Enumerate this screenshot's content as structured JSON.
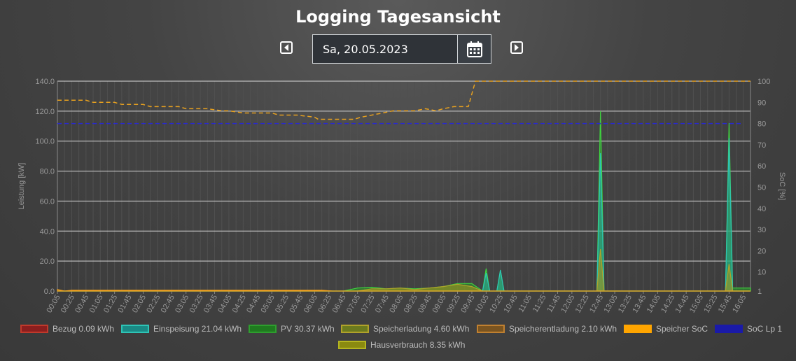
{
  "title": "Logging Tagesansicht",
  "date": "Sa, 20.05.2023",
  "icons": {
    "prev": "caret-left-icon",
    "next": "caret-right-icon",
    "calendar": "calendar-icon"
  },
  "colors": {
    "bezug": "#8b1e1e",
    "einspeisung": "#1a8a85",
    "pv": "#1f7a1f",
    "speicherladung": "#6b7a1e",
    "speicherentladung": "#7a5420",
    "speicher_soc": "#ffa500",
    "soc_lp1": "#1a1aa8",
    "hausverbrauch": "#8a8a10"
  },
  "legend": [
    {
      "label": "Bezug 0.09 kWh",
      "fill": "#8b1e1e",
      "border": "#c0392b"
    },
    {
      "label": "Einspeisung 21.04 kWh",
      "fill": "#1a8a85",
      "border": "#2ec4b6"
    },
    {
      "label": "PV 30.37 kWh",
      "fill": "#1f7a1f",
      "border": "#2e9e2e"
    },
    {
      "label": "Speicherladung 4.60 kWh",
      "fill": "#6b7a1e",
      "border": "#b0a22a"
    },
    {
      "label": "Speicherentladung 2.10 kWh",
      "fill": "#7a5420",
      "border": "#c08030"
    },
    {
      "label": "Speicher SoC",
      "fill": "#ffa500",
      "border": "#ffa500"
    },
    {
      "label": "SoC Lp 1",
      "fill": "#1a1aa8",
      "border": "#1a1aa8"
    },
    {
      "label": "Hausverbrauch 8.35 kWh",
      "fill": "#8a8a10",
      "border": "#b5b520"
    }
  ],
  "chart_data": {
    "type": "area",
    "ylabel": "Leistung [kW]",
    "y2label": "SoC [%]",
    "ylim": [
      0,
      140
    ],
    "y2lim": [
      1,
      100
    ],
    "yticks": [
      "0.0",
      "20.0",
      "40.0",
      "60.0",
      "80.0",
      "100.0",
      "120.0",
      "140.0"
    ],
    "y2ticks": [
      "1",
      "10",
      "20",
      "30",
      "40",
      "50",
      "60",
      "70",
      "80",
      "90",
      "100"
    ],
    "xticks": [
      "00:05",
      "00:25",
      "00:45",
      "01:05",
      "01:25",
      "01:45",
      "02:05",
      "02:25",
      "02:45",
      "03:05",
      "03:25",
      "03:45",
      "04:05",
      "04:25",
      "04:45",
      "05:05",
      "05:25",
      "05:45",
      "06:05",
      "06:25",
      "06:45",
      "07:05",
      "07:25",
      "07:45",
      "08:05",
      "08:25",
      "08:45",
      "09:05",
      "09:25",
      "09:45",
      "10:05",
      "10:25",
      "10:45",
      "11:05",
      "11:25",
      "11:45",
      "12:05",
      "12:25",
      "12:45",
      "13:05",
      "13:25",
      "13:45",
      "14:05",
      "14:25",
      "14:45",
      "15:05",
      "15:25",
      "15:45",
      "16:05"
    ],
    "grid": true,
    "series": [
      {
        "name": "PV 30.37 kWh",
        "axis": "left",
        "x": [
          "00:05",
          "06:45",
          "07:05",
          "07:25",
          "07:45",
          "08:05",
          "08:25",
          "08:45",
          "09:05",
          "09:25",
          "09:45",
          "10:00",
          "10:05",
          "10:10",
          "10:20",
          "10:25",
          "10:30",
          "12:40",
          "12:45",
          "12:50",
          "13:00",
          "15:40",
          "15:45",
          "15:50",
          "16:05",
          "16:15"
        ],
        "values": [
          0,
          0,
          2.0,
          2.5,
          1.5,
          2.0,
          1.5,
          2.0,
          3.0,
          5.0,
          5.0,
          0,
          15,
          0,
          0,
          14,
          0,
          0,
          120,
          0,
          0,
          0,
          112,
          2,
          2,
          2
        ]
      },
      {
        "name": "Einspeisung 21.04 kWh",
        "axis": "left",
        "x": [
          "00:05",
          "10:00",
          "10:05",
          "10:10",
          "10:20",
          "10:25",
          "10:30",
          "12:40",
          "12:45",
          "12:50",
          "13:00",
          "15:40",
          "15:45",
          "15:50",
          "16:05",
          "16:15"
        ],
        "values": [
          0,
          0,
          12,
          0,
          0,
          14,
          0,
          0,
          92,
          0,
          0,
          0,
          102,
          0,
          0,
          0
        ]
      },
      {
        "name": "Speicherladung 4.60 kWh",
        "axis": "left",
        "x": [
          "00:05",
          "07:05",
          "07:25",
          "07:45",
          "08:05",
          "08:25",
          "08:45",
          "09:05",
          "09:25",
          "09:45",
          "10:00",
          "12:40",
          "12:45",
          "12:50",
          "15:40",
          "15:45",
          "15:50",
          "16:15"
        ],
        "values": [
          0,
          0,
          1.5,
          1.5,
          2.0,
          1.0,
          2.0,
          3.0,
          4.5,
          3.0,
          0,
          0,
          28,
          0,
          0,
          18,
          0,
          0
        ]
      },
      {
        "name": "Speicherentladung 2.10 kWh",
        "axis": "left",
        "x": [
          "00:05",
          "00:15",
          "00:25",
          "06:15",
          "06:30",
          "16:15"
        ],
        "values": [
          1.0,
          0,
          0.5,
          0.5,
          0,
          0
        ]
      },
      {
        "name": "Speicher SoC",
        "axis": "right",
        "style": "dashed",
        "x": [
          "00:05",
          "00:45",
          "00:55",
          "01:25",
          "01:35",
          "02:05",
          "02:15",
          "02:55",
          "03:05",
          "03:35",
          "03:55",
          "04:05",
          "04:25",
          "05:05",
          "05:15",
          "05:40",
          "06:05",
          "06:10",
          "06:30",
          "07:00",
          "07:10",
          "07:25",
          "07:40",
          "07:55",
          "08:15",
          "08:25",
          "08:40",
          "08:55",
          "09:05",
          "09:20",
          "09:25",
          "09:40",
          "09:50",
          "10:05",
          "16:15"
        ],
        "values": [
          91,
          91,
          90,
          90,
          89,
          89,
          88,
          88,
          87,
          87,
          86,
          86,
          85,
          85,
          84,
          84,
          83,
          82,
          82,
          82,
          83,
          84,
          85,
          86,
          86,
          86,
          87,
          86,
          87,
          88,
          88,
          88,
          100,
          100,
          100
        ]
      },
      {
        "name": "SoC Lp 1",
        "axis": "right",
        "style": "dashed",
        "x": [
          "00:05",
          "16:05"
        ],
        "values": [
          80,
          80
        ]
      }
    ]
  }
}
